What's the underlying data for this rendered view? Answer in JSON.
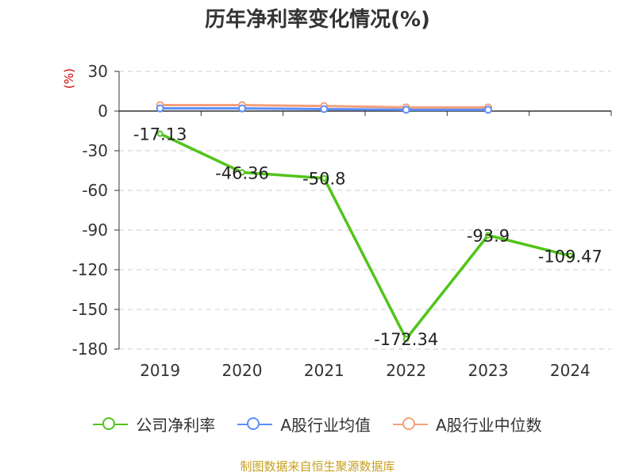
{
  "chart_data": {
    "type": "line",
    "title": "历年净利率变化情况(%)",
    "ylabel": "(%)",
    "categories": [
      "2019",
      "2020",
      "2021",
      "2022",
      "2023",
      "2024"
    ],
    "ylim": [
      -180,
      30
    ],
    "yticks": [
      "30",
      "0",
      "-30",
      "-60",
      "-90",
      "-120",
      "-150",
      "-180"
    ],
    "grid": true,
    "legend_position": "bottom",
    "series": [
      {
        "name": "公司净利率",
        "color": "#52c41a",
        "values": [
          -17.13,
          -46.36,
          -50.8,
          -172.34,
          -93.9,
          -109.47
        ],
        "labels": [
          "-17.13",
          "-46.36",
          "-50.8",
          "-172.34",
          "-93.9",
          "-109.47"
        ]
      },
      {
        "name": "A股行业均值",
        "color": "#5b8ff9",
        "values": [
          2.0,
          2.0,
          1.5,
          1.0,
          1.0,
          null
        ]
      },
      {
        "name": "A股行业中位数",
        "color": "#f5a07a",
        "values": [
          4.5,
          4.5,
          3.8,
          2.8,
          2.8,
          null
        ]
      }
    ]
  },
  "source": "制图数据来自恒生聚源数据库"
}
